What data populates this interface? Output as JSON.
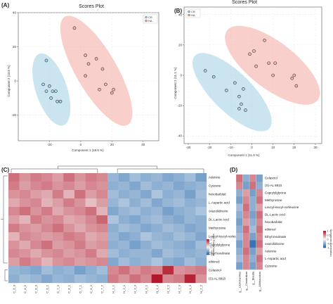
{
  "panel_labels": [
    "(A)",
    "(B)",
    "(C)",
    "(D)"
  ],
  "colors": {
    "cr": "#9fd0e3",
    "ha": "#f2a7a0",
    "heat_low": "#2166ac",
    "heat_mid": "#f7f7f7",
    "heat_high": "#b2182b"
  },
  "chart_data": [
    {
      "type": "scatter",
      "panel": "(A)",
      "title": "Scores Plot",
      "xlabel": "Component 1 (18.6 %)",
      "ylabel": "Component 2 (13.6 %)",
      "xlim": [
        -40,
        50
      ],
      "ylim": [
        -35,
        40
      ],
      "xticks": [
        -20,
        0,
        20,
        40
      ],
      "yticks": [
        -20,
        0,
        20,
        40
      ],
      "legend": {
        "position": "top-right",
        "items": [
          "CR",
          "HA"
        ]
      },
      "series": [
        {
          "name": "CR",
          "points": [
            [
              -22,
              12
            ],
            [
              -24,
              -2
            ],
            [
              -20,
              -3
            ],
            [
              -18,
              -6
            ],
            [
              -16,
              -6
            ],
            [
              -15,
              -12
            ],
            [
              -13,
              -12
            ],
            [
              -19,
              -10
            ],
            [
              -22,
              -6
            ]
          ]
        },
        {
          "name": "HA",
          "points": [
            [
              -4,
              31
            ],
            [
              3,
              15
            ],
            [
              5,
              10
            ],
            [
              10,
              13
            ],
            [
              14,
              7
            ],
            [
              16,
              -2
            ],
            [
              20,
              -7
            ],
            [
              21,
              -5
            ],
            [
              12,
              -5
            ],
            [
              3,
              3
            ]
          ]
        }
      ]
    },
    {
      "type": "scatter",
      "panel": "(B)",
      "title": "Scores Plot",
      "xlabel": "Component 1 (11.9 %)",
      "ylabel": "Component 2 (11.1 %)",
      "xlim": [
        -32,
        33
      ],
      "ylim": [
        -45,
        45
      ],
      "xticks": [
        -30,
        -20,
        -10,
        0,
        10,
        20,
        30
      ],
      "yticks": [
        -40,
        -20,
        0,
        20,
        40
      ],
      "legend": {
        "position": "top-left",
        "items": [
          "CR",
          "HA"
        ]
      },
      "series": [
        {
          "name": "CR",
          "points": [
            [
              -22,
              3
            ],
            [
              -18,
              -1
            ],
            [
              -12,
              -10
            ],
            [
              -8,
              -5
            ],
            [
              -6,
              -14
            ],
            [
              -6,
              -22
            ],
            [
              -5,
              -19
            ],
            [
              -4,
              -9
            ],
            [
              -3,
              -23
            ]
          ]
        },
        {
          "name": "HA",
          "points": [
            [
              -1,
              14
            ],
            [
              1,
              16
            ],
            [
              2,
              6
            ],
            [
              6,
              23
            ],
            [
              8,
              8
            ],
            [
              10,
              0
            ],
            [
              11,
              8
            ],
            [
              19,
              -2
            ],
            [
              20,
              0
            ],
            [
              21,
              -7
            ]
          ]
        }
      ]
    },
    {
      "type": "heatmap",
      "panel": "(C)",
      "columns": [
        "C_6_3",
        "C_8_2",
        "C_8_3",
        "C_6_1",
        "C_7_3",
        "C_8_1",
        "C_7_1",
        "C_6_2",
        "C_7_2",
        "H_1_1",
        "H_2_1",
        "H_3_3",
        "H_3_1",
        "H_1_2",
        "H_3_2",
        "H_2_3",
        "H_1_3",
        "H_2_2"
      ],
      "rows": [
        "Adenine",
        "Cytosine",
        "hexobarbital",
        "L-Aspartic acid",
        "oxazolidinone",
        "DL-Lactic Acid",
        "Methyrosine",
        "Leucyl-leucyl-norleucine",
        "Caprylylglycine",
        "Ethyl levulinate",
        "ethiimol",
        "Celastrol",
        "(S)-AL 8810"
      ],
      "scale_label": "log2 Fold Change",
      "scale_ticks": [
        2,
        1,
        0,
        -1,
        -2
      ],
      "scale_range": [
        -2,
        2
      ],
      "values": [
        [
          1.2,
          0.9,
          1.1,
          1.0,
          0.8,
          1.2,
          0.9,
          1.1,
          1.0,
          -0.9,
          -1.1,
          -0.8,
          -1.0,
          -0.9,
          -1.1,
          -1.0,
          -0.8,
          -1.2
        ],
        [
          1.1,
          0.8,
          1.0,
          1.1,
          0.9,
          1.0,
          0.8,
          1.0,
          0.9,
          -1.0,
          -0.9,
          -1.1,
          -0.8,
          -1.0,
          -0.9,
          -1.1,
          -1.0,
          -0.9
        ],
        [
          0.9,
          1.0,
          0.8,
          0.7,
          1.1,
          0.6,
          1.2,
          0.8,
          1.0,
          -0.8,
          -1.0,
          -0.9,
          -1.1,
          -0.7,
          -1.0,
          -0.9,
          -1.2,
          -0.8
        ],
        [
          0.7,
          0.9,
          1.0,
          0.6,
          0.8,
          1.1,
          0.9,
          0.5,
          0.8,
          -0.9,
          -0.7,
          -1.0,
          -0.8,
          -1.1,
          -0.9,
          -0.8,
          -1.0,
          -0.9
        ],
        [
          1.0,
          1.2,
          0.9,
          1.1,
          0.7,
          0.9,
          1.0,
          1.2,
          0.6,
          -1.1,
          -0.9,
          -0.8,
          -1.0,
          -0.9,
          -1.2,
          -1.0,
          -0.9,
          -0.7
        ],
        [
          0.8,
          0.6,
          1.1,
          0.9,
          1.0,
          0.7,
          0.8,
          1.0,
          1.3,
          -0.7,
          -1.0,
          -1.1,
          -0.9,
          -0.8,
          -1.0,
          -1.1,
          -0.9,
          -1.0
        ],
        [
          1.1,
          0.9,
          0.8,
          1.0,
          1.2,
          0.9,
          0.7,
          0.9,
          1.0,
          -1.0,
          -0.8,
          -0.9,
          -1.1,
          -1.0,
          -0.8,
          -0.9,
          -1.1,
          -1.0
        ],
        [
          0.6,
          1.0,
          0.9,
          0.8,
          0.9,
          1.1,
          1.0,
          0.7,
          0.8,
          -0.9,
          -1.1,
          -1.0,
          -0.7,
          -0.9,
          -1.0,
          -0.8,
          -0.9,
          -1.1
        ],
        [
          0.9,
          0.7,
          1.0,
          1.2,
          0.8,
          0.9,
          1.1,
          0.8,
          0.9,
          -1.0,
          -0.9,
          -1.2,
          -1.0,
          -0.8,
          -0.9,
          -1.0,
          -1.1,
          -0.8
        ],
        [
          1.0,
          0.9,
          0.7,
          0.9,
          1.0,
          0.8,
          0.9,
          1.1,
          0.7,
          -0.8,
          -1.0,
          -0.9,
          -0.9,
          -1.1,
          -0.8,
          -0.9,
          -1.0,
          -0.9
        ],
        [
          0.8,
          1.1,
          0.9,
          0.6,
          0.9,
          1.0,
          0.8,
          0.9,
          1.0,
          -1.1,
          -0.8,
          -1.0,
          -0.9,
          -0.7,
          -1.0,
          -1.1,
          -0.8,
          -1.0
        ],
        [
          -0.9,
          -1.0,
          -1.1,
          -0.8,
          -1.0,
          -0.9,
          -1.2,
          -1.0,
          -0.8,
          1.0,
          1.2,
          0.9,
          1.1,
          1.0,
          1.8,
          0.9,
          1.0,
          1.1
        ],
        [
          -1.0,
          -0.8,
          -0.9,
          -1.1,
          -0.9,
          -1.0,
          -0.8,
          -0.9,
          -1.0,
          1.1,
          0.9,
          1.2,
          1.0,
          2.0,
          1.0,
          1.1,
          1.9,
          0.9
        ]
      ]
    },
    {
      "type": "heatmap",
      "panel": "(D)",
      "columns": [
        "g__Lactobacillus",
        "g__Clostridium",
        "g__Blautia",
        "g__Allobaculum"
      ],
      "rows": [
        "Celastrol",
        "(S)-AL 8810",
        "Caprylylglycine",
        "Methyrosine",
        "Leucyl-leucyl-norleucine",
        "DL-Lactic Acid",
        "hexobarbital",
        "ethiimol",
        "Ethyl levulinate",
        "oxazolidinone",
        "Adenine",
        "L-Aspartic acid",
        "Cytosine"
      ],
      "scale_label": "Spearman Correlation",
      "scale_ticks": [
        1,
        0.5,
        0,
        -0.5,
        -1
      ],
      "scale_range": [
        -1,
        1
      ],
      "values": [
        [
          0.6,
          -0.5,
          0.5,
          -0.6
        ],
        [
          0.5,
          -0.6,
          0.6,
          -0.5
        ],
        [
          -0.5,
          0.4,
          -0.6,
          0.5
        ],
        [
          -0.6,
          0.5,
          -0.5,
          0.6
        ],
        [
          -0.4,
          0.6,
          -0.5,
          0.4
        ],
        [
          -0.5,
          0.5,
          -0.6,
          0.6
        ],
        [
          -0.6,
          0.4,
          -0.5,
          0.5
        ],
        [
          -0.5,
          0.6,
          -0.4,
          0.6
        ],
        [
          -0.4,
          0.5,
          -0.6,
          0.5
        ],
        [
          -0.6,
          0.5,
          -0.9,
          0.6
        ],
        [
          -0.5,
          0.6,
          -0.6,
          0.4
        ],
        [
          -0.4,
          0.5,
          -0.5,
          0.6
        ],
        [
          -0.6,
          0.5,
          -0.6,
          0.5
        ]
      ]
    }
  ]
}
